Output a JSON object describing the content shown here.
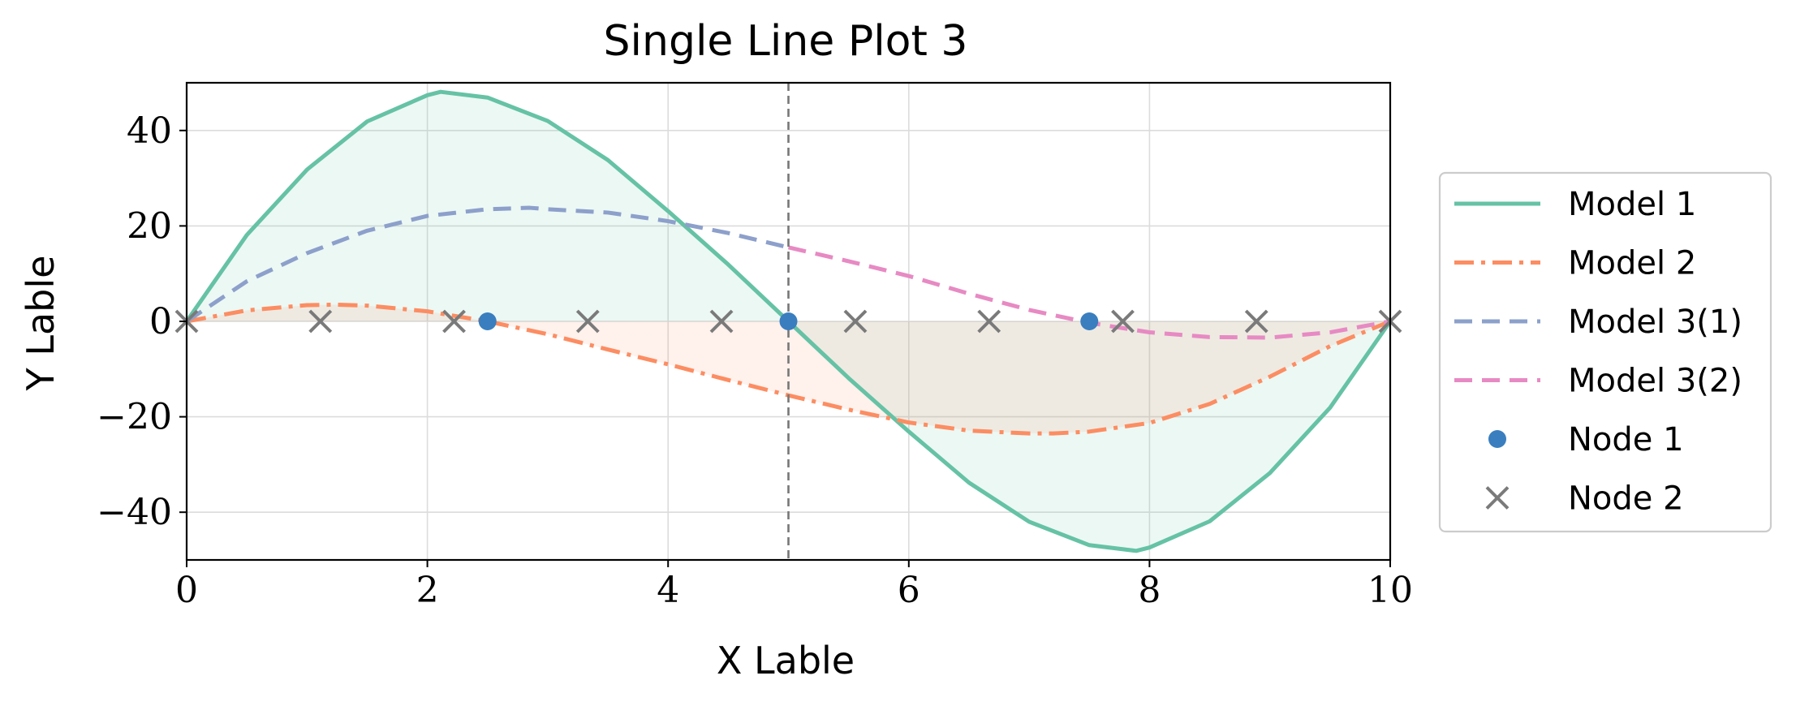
{
  "chart_data": {
    "type": "line",
    "title": "Single Line Plot 3",
    "xlabel": "X Lable",
    "ylabel": "Y Lable",
    "xlim": [
      0,
      10
    ],
    "ylim": [
      -50,
      50
    ],
    "xticks": [
      0,
      2,
      4,
      6,
      8,
      10
    ],
    "yticks": [
      -40,
      -20,
      0,
      20,
      40
    ],
    "ytick_labels": [
      "−40",
      "−20",
      "0",
      "20",
      "40"
    ],
    "grid": true,
    "legend_position": "right, outside",
    "vline": {
      "x": 5,
      "style": "dashed",
      "color": "#777777"
    },
    "series": [
      {
        "name": "Model 1",
        "style": "solid",
        "color": "#66c2a5",
        "fill_to_zero": true,
        "x": [
          0,
          0.5,
          1,
          1.5,
          2,
          2.11,
          2.5,
          3,
          3.5,
          4,
          4.5,
          5,
          5.5,
          6,
          6.5,
          7,
          7.5,
          7.89,
          8,
          8.5,
          9,
          9.5,
          10
        ],
        "y": [
          0,
          18.1,
          31.8,
          41.9,
          47.4,
          48.1,
          46.9,
          42.0,
          33.8,
          23.1,
          11.9,
          0,
          -11.9,
          -23.1,
          -33.8,
          -42.0,
          -46.9,
          -48.1,
          -47.4,
          -41.9,
          -31.8,
          -18.1,
          0
        ]
      },
      {
        "name": "Model 2",
        "style": "dashdot",
        "color": "#fc8d62",
        "fill_to_zero": true,
        "x": [
          0,
          0.5,
          1,
          1.25,
          1.5,
          2,
          2.5,
          3,
          3.5,
          4,
          4.5,
          5,
          5.5,
          6,
          6.5,
          7,
          7.2,
          7.5,
          8,
          8.5,
          9,
          9.5,
          10
        ],
        "y": [
          0,
          2.3,
          3.4,
          3.5,
          3.3,
          2.1,
          0,
          -2.7,
          -5.9,
          -9.0,
          -12.3,
          -15.5,
          -18.5,
          -21.2,
          -22.9,
          -23.5,
          -23.5,
          -23.1,
          -21.3,
          -17.3,
          -11.6,
          -5.2,
          0
        ]
      },
      {
        "name": "Model 3(1)",
        "style": "dashed",
        "color": "#8da0cb",
        "x": [
          0,
          0.5,
          1,
          1.5,
          2,
          2.5,
          2.85,
          3,
          3.5,
          4,
          4.5,
          5
        ],
        "y": [
          0,
          8.4,
          14.3,
          19.0,
          22.1,
          23.5,
          23.8,
          23.5,
          22.8,
          21.0,
          18.5,
          15.5
        ]
      },
      {
        "name": "Model 3(2)",
        "style": "dashed",
        "color": "#e78ac3",
        "x": [
          5,
          5.5,
          6,
          6.5,
          7,
          7.5,
          8,
          8.5,
          9,
          9.5,
          10
        ],
        "y": [
          15.5,
          12.6,
          9.5,
          5.8,
          2.4,
          -0.3,
          -2.3,
          -3.3,
          -3.4,
          -2.3,
          0
        ]
      }
    ],
    "scatter": [
      {
        "name": "Node 1",
        "marker": "circle",
        "color": "#3a7ebf",
        "x": [
          2.5,
          5,
          7.5
        ],
        "y": [
          0,
          0,
          0
        ]
      },
      {
        "name": "Node 2",
        "marker": "x",
        "color": "#7a7a7a",
        "x": [
          0,
          1.111,
          2.222,
          3.333,
          4.444,
          5.556,
          6.667,
          7.778,
          8.889,
          10
        ],
        "y": [
          0,
          0,
          0,
          0,
          0,
          0,
          0,
          0,
          0,
          0
        ]
      }
    ]
  }
}
